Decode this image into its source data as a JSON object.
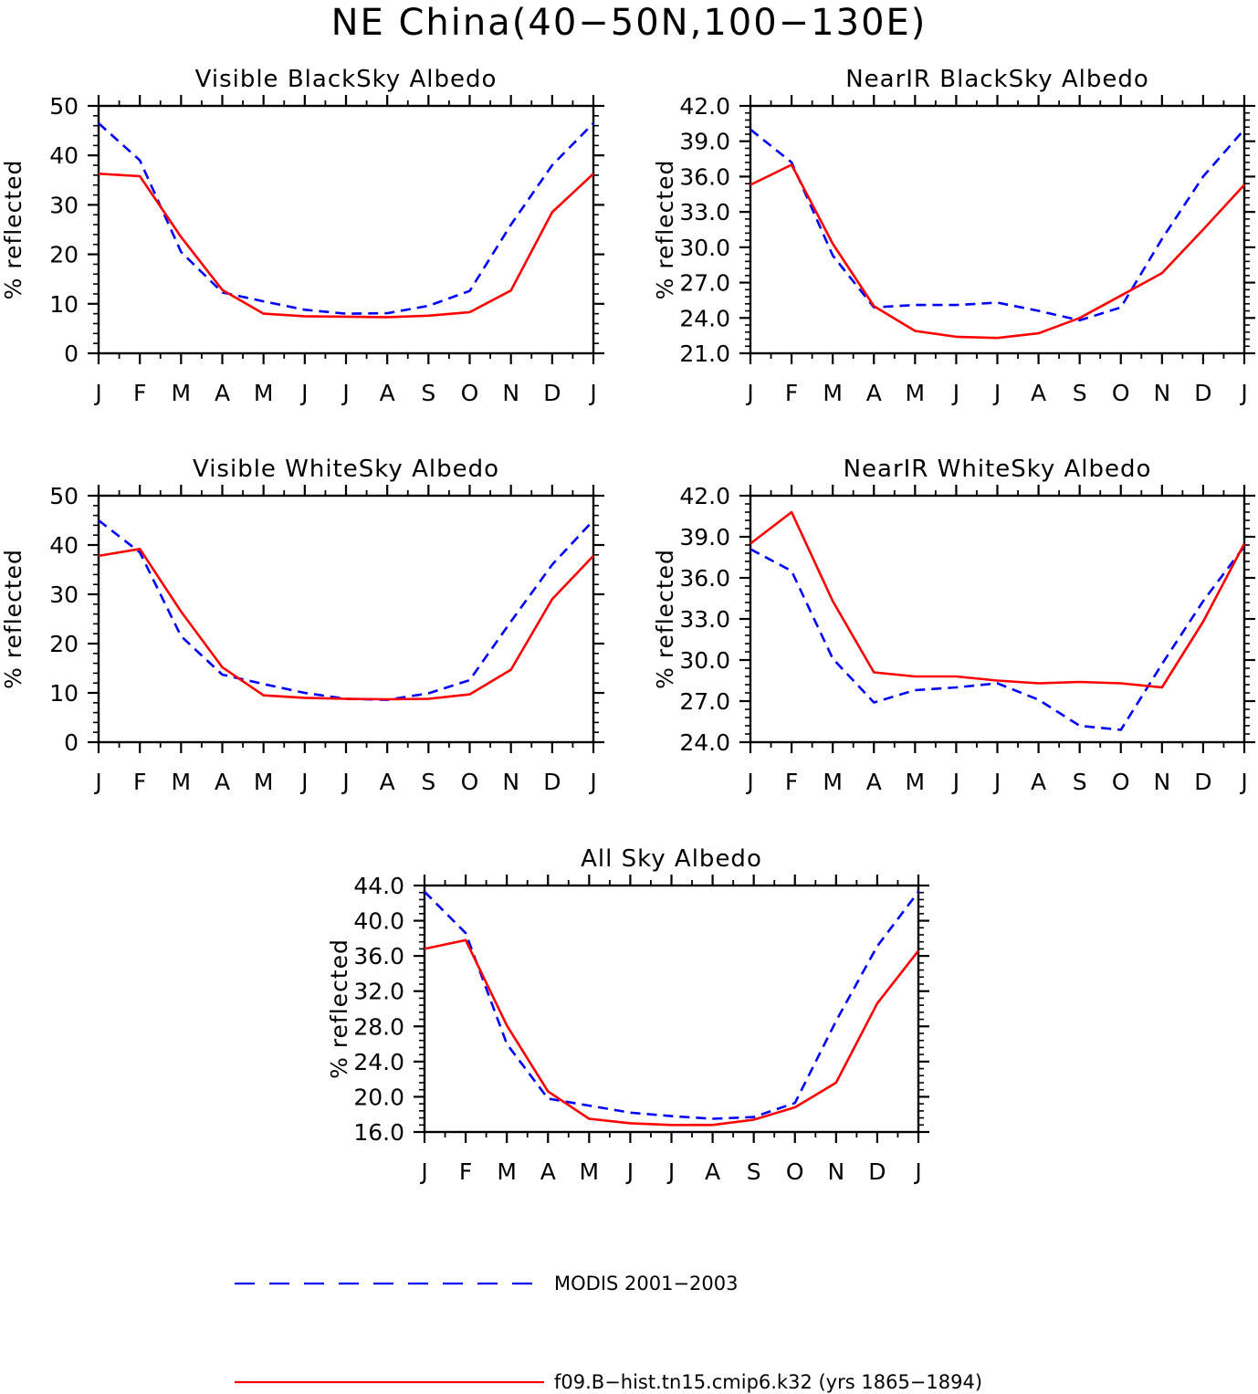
{
  "figure": {
    "title": "NE China(40−50N,100−130E)"
  },
  "legend": {
    "entries": [
      {
        "label": "MODIS 2001−2003",
        "color": "#0000ff",
        "style": "dashed"
      },
      {
        "label": "f09.B−hist.tn15.cmip6.k32 (yrs 1865−1894)",
        "color": "#ff0000",
        "style": "solid"
      }
    ]
  },
  "chart_data": [
    {
      "type": "line",
      "title": "Visible BlackSky Albedo",
      "ylabel": "% reflected",
      "x": [
        "J",
        "F",
        "M",
        "A",
        "M",
        "J",
        "J",
        "A",
        "S",
        "O",
        "N",
        "D",
        "J"
      ],
      "ylim": [
        0,
        50
      ],
      "yticks": [
        "0",
        "10",
        "20",
        "30",
        "40",
        "50"
      ],
      "ytick_values": [
        0,
        10,
        20,
        30,
        40,
        50
      ],
      "series": [
        {
          "name": "MODIS 2001−2003",
          "color": "#0000ff",
          "style": "dashed",
          "values": [
            46.5,
            39.0,
            20.5,
            12.3,
            10.5,
            8.8,
            8.0,
            8.1,
            9.6,
            12.6,
            26.0,
            38.0,
            46.5
          ]
        },
        {
          "name": "f09.B−hist.tn15.cmip6.k32 (yrs 1865−1894)",
          "color": "#ff0000",
          "style": "solid",
          "values": [
            36.3,
            35.8,
            23.5,
            12.8,
            8.0,
            7.5,
            7.4,
            7.3,
            7.6,
            8.3,
            12.7,
            28.5,
            36.3
          ]
        }
      ]
    },
    {
      "type": "line",
      "title": "NearIR BlackSky Albedo",
      "ylabel": "% reflected",
      "x": [
        "J",
        "F",
        "M",
        "A",
        "M",
        "J",
        "J",
        "A",
        "S",
        "O",
        "N",
        "D",
        "J"
      ],
      "ylim": [
        21,
        42
      ],
      "yticks": [
        "21.0",
        "24.0",
        "27.0",
        "30.0",
        "33.0",
        "36.0",
        "39.0",
        "42.0"
      ],
      "ytick_values": [
        21,
        24,
        27,
        30,
        33,
        36,
        39,
        42
      ],
      "series": [
        {
          "name": "MODIS 2001−2003",
          "color": "#0000ff",
          "style": "dashed",
          "values": [
            40.0,
            37.2,
            29.3,
            24.9,
            25.1,
            25.1,
            25.3,
            24.6,
            23.8,
            24.9,
            30.7,
            36.0,
            40.0
          ]
        },
        {
          "name": "f09.B−hist.tn15.cmip6.k32 (yrs 1865−1894)",
          "color": "#ff0000",
          "style": "solid",
          "values": [
            35.3,
            37.0,
            30.3,
            25.0,
            22.9,
            22.4,
            22.3,
            22.7,
            24.0,
            25.9,
            27.8,
            31.5,
            35.3
          ]
        }
      ]
    },
    {
      "type": "line",
      "title": "Visible WhiteSky Albedo",
      "ylabel": "% reflected",
      "x": [
        "J",
        "F",
        "M",
        "A",
        "M",
        "J",
        "J",
        "A",
        "S",
        "O",
        "N",
        "D",
        "J"
      ],
      "ylim": [
        0,
        50
      ],
      "yticks": [
        "0",
        "10",
        "20",
        "30",
        "40",
        "50"
      ],
      "ytick_values": [
        0,
        10,
        20,
        30,
        40,
        50
      ],
      "series": [
        {
          "name": "MODIS 2001−2003",
          "color": "#0000ff",
          "style": "dashed",
          "values": [
            45.0,
            38.5,
            21.5,
            13.7,
            11.8,
            10.0,
            8.8,
            8.6,
            9.9,
            12.6,
            24.5,
            36.0,
            45.0
          ]
        },
        {
          "name": "f09.B−hist.tn15.cmip6.k32 (yrs 1865−1894)",
          "color": "#ff0000",
          "style": "solid",
          "values": [
            37.8,
            39.2,
            26.5,
            15.2,
            9.5,
            9.0,
            8.8,
            8.7,
            8.8,
            9.7,
            14.7,
            29.0,
            37.8
          ]
        }
      ]
    },
    {
      "type": "line",
      "title": "NearIR WhiteSky Albedo",
      "ylabel": "% reflected",
      "x": [
        "J",
        "F",
        "M",
        "A",
        "M",
        "J",
        "J",
        "A",
        "S",
        "O",
        "N",
        "D",
        "J"
      ],
      "ylim": [
        24,
        42
      ],
      "yticks": [
        "24.0",
        "27.0",
        "30.0",
        "33.0",
        "36.0",
        "39.0",
        "42.0"
      ],
      "ytick_values": [
        24,
        27,
        30,
        33,
        36,
        39,
        42
      ],
      "series": [
        {
          "name": "MODIS 2001−2003",
          "color": "#0000ff",
          "style": "dashed",
          "values": [
            38.1,
            36.5,
            30.1,
            26.9,
            27.8,
            28.0,
            28.3,
            27.1,
            25.2,
            24.9,
            29.7,
            34.3,
            38.3
          ]
        },
        {
          "name": "f09.B−hist.tn15.cmip6.k32 (yrs 1865−1894)",
          "color": "#ff0000",
          "style": "solid",
          "values": [
            38.5,
            40.8,
            34.3,
            29.1,
            28.8,
            28.8,
            28.5,
            28.3,
            28.4,
            28.3,
            28.0,
            32.8,
            38.5
          ]
        }
      ]
    },
    {
      "type": "line",
      "title": "All Sky Albedo",
      "ylabel": "% reflected",
      "x": [
        "J",
        "F",
        "M",
        "A",
        "M",
        "J",
        "J",
        "A",
        "S",
        "O",
        "N",
        "D",
        "J"
      ],
      "ylim": [
        16,
        44
      ],
      "yticks": [
        "16.0",
        "20.0",
        "24.0",
        "28.0",
        "32.0",
        "36.0",
        "40.0",
        "44.0"
      ],
      "ytick_values": [
        16,
        20,
        24,
        28,
        32,
        36,
        40,
        44
      ],
      "series": [
        {
          "name": "MODIS 2001−2003",
          "color": "#0000ff",
          "style": "dashed",
          "values": [
            43.3,
            38.6,
            26.0,
            19.8,
            19.0,
            18.2,
            17.8,
            17.5,
            17.7,
            19.3,
            28.6,
            37.1,
            43.3
          ]
        },
        {
          "name": "f09.B−hist.tn15.cmip6.k32 (yrs 1865−1894)",
          "color": "#ff0000",
          "style": "solid",
          "values": [
            36.8,
            37.8,
            28.1,
            20.6,
            17.5,
            17.0,
            16.8,
            16.8,
            17.4,
            18.8,
            21.6,
            30.6,
            36.6
          ]
        }
      ]
    }
  ]
}
